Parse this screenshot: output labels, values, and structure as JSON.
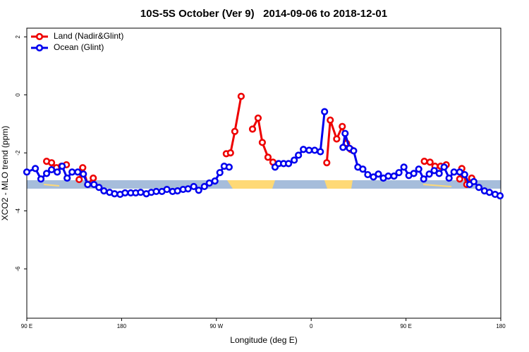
{
  "chart_data": {
    "type": "line",
    "title": "10S-5S October (Ver 9)   2014-09-06 to 2018-12-01",
    "xlabel": "Longitude (deg E)",
    "ylabel": "XCO2 - MLO trend (ppm)",
    "xlim": [
      90,
      540
    ],
    "xticks": [
      {
        "value": 90,
        "label": "90 E"
      },
      {
        "value": 180,
        "label": "180"
      },
      {
        "value": 270,
        "label": "90 W"
      },
      {
        "value": 360,
        "label": "0"
      },
      {
        "value": 450,
        "label": "90 E"
      },
      {
        "value": 540,
        "label": "180"
      }
    ],
    "ylim": [
      -7.7,
      2.3
    ],
    "yticks": [
      2,
      0,
      -2,
      -4,
      -6
    ],
    "legend": "top-left",
    "series": [
      {
        "name": "Land (Nadir&Glint)",
        "color": "#ee0000",
        "x": [
          108.8,
          113.5,
          118.2,
          122.9,
          127.6,
          null,
          139.7,
          143.1,
          147.8,
          153.1,
          null,
          279.4,
          283.4,
          287.5,
          293.5,
          null,
          304.3,
          309.6,
          313.6,
          319.0,
          323.7,
          null,
          374.8,
          378.1,
          384.2,
          389.5,
          393.6,
          397.6,
          null,
          467.4,
          472.8,
          477.5,
          482.9,
          488.2,
          null,
          501.0,
          503.0,
          507.7,
          512.4
        ],
        "values": [
          -2.29,
          -2.34,
          -2.51,
          -2.46,
          -2.41,
          null,
          -2.92,
          -2.51,
          -3.09,
          -2.87,
          null,
          -2.03,
          -2.0,
          -1.26,
          -0.05,
          null,
          -1.18,
          -0.8,
          -1.64,
          -2.15,
          -2.32,
          null,
          -2.34,
          -0.87,
          -1.52,
          -1.09,
          -1.67,
          -1.88,
          null,
          -2.29,
          -2.32,
          -2.46,
          -2.46,
          -2.41,
          null,
          -2.9,
          -2.54,
          -3.09,
          -2.87
        ]
      },
      {
        "name": "Ocean (Glint)",
        "color": "#0000ee",
        "x": [
          90,
          98.1,
          103.4,
          108.8,
          113.5,
          118.9,
          123.6,
          128.3,
          133.0,
          138.4,
          143.7,
          147.8,
          153.8,
          158.5,
          163.2,
          168.6,
          173.3,
          178.6,
          183.3,
          188.7,
          193.4,
          198.1,
          203.5,
          208.2,
          212.9,
          218.3,
          223.0,
          228.4,
          233.1,
          238.4,
          243.1,
          248.5,
          253.2,
          258.6,
          263.3,
          268.6,
          273.3,
          277.4,
          282.1,
          null,
          325.7,
          329.1,
          333.8,
          338.5,
          343.9,
          347.9,
          352.6,
          358.0,
          363.3,
          368.7,
          372.7,
          null,
          390.2,
          392.2,
          396.3,
          400.3,
          404.3,
          409.0,
          413.7,
          419.1,
          423.8,
          428.5,
          433.2,
          438.6,
          443.3,
          448.0,
          452.7,
          457.4,
          462.1,
          466.8,
          472.1,
          476.8,
          481.5,
          486.2,
          490.9,
          495.6,
          501.0,
          505.7,
          510.4,
          514.4,
          519.2,
          524.5,
          529.2,
          534.6,
          539.3
        ],
        "values": [
          -2.66,
          -2.54,
          -2.9,
          -2.71,
          -2.58,
          -2.66,
          -2.46,
          -2.87,
          -2.66,
          -2.66,
          -2.73,
          -3.09,
          -3.09,
          -3.19,
          -3.31,
          -3.36,
          -3.41,
          -3.43,
          -3.38,
          -3.38,
          -3.38,
          -3.36,
          -3.41,
          -3.36,
          -3.33,
          -3.33,
          -3.26,
          -3.33,
          -3.31,
          -3.26,
          -3.24,
          -3.16,
          -3.29,
          -3.16,
          -3.04,
          -2.97,
          -2.68,
          -2.46,
          -2.49,
          null,
          -2.49,
          -2.37,
          -2.37,
          -2.37,
          -2.25,
          -2.08,
          -1.88,
          -1.91,
          -1.91,
          -1.96,
          -0.58,
          null,
          -1.81,
          -1.33,
          -1.84,
          -1.93,
          -2.49,
          -2.56,
          -2.75,
          -2.83,
          -2.73,
          -2.87,
          -2.8,
          -2.8,
          -2.68,
          -2.49,
          -2.78,
          -2.71,
          -2.56,
          -2.9,
          -2.73,
          -2.61,
          -2.71,
          -2.49,
          -2.87,
          -2.66,
          -2.66,
          -2.75,
          -3.09,
          -2.99,
          -3.19,
          -3.31,
          -3.36,
          -3.43,
          -3.48
        ]
      }
    ]
  }
}
